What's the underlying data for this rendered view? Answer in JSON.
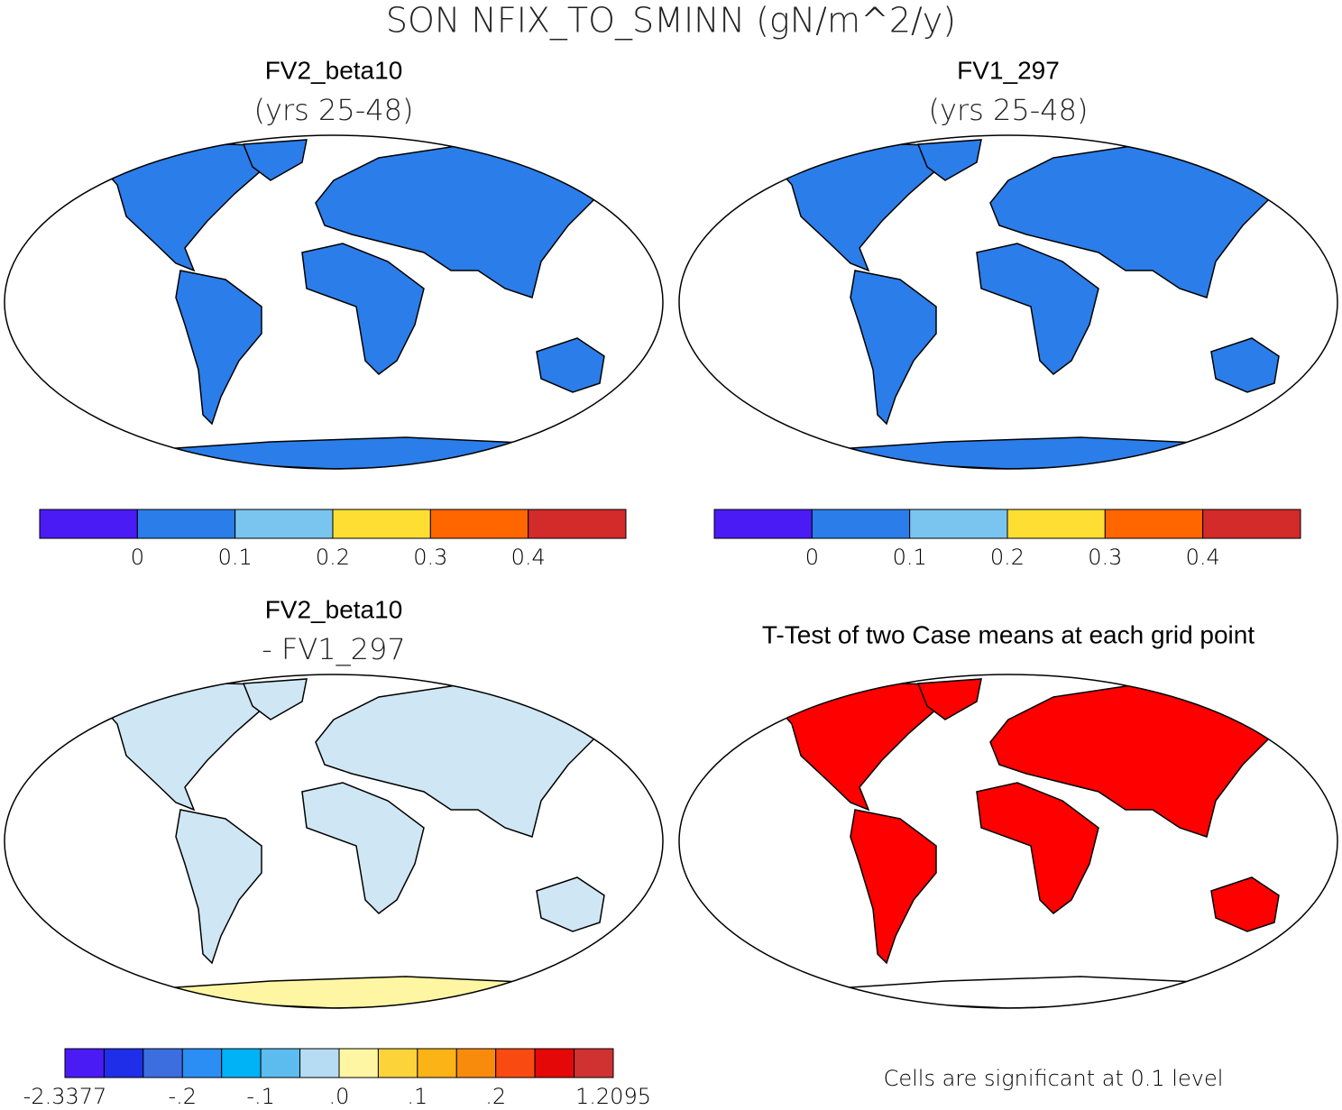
{
  "title": "SON NFIX_TO_SMINN (gN/m^2/y)",
  "panels": [
    {
      "title": "FV2_beta10",
      "subtitle": "(yrs 25-48)",
      "land_color": "#2b7de9",
      "antarctica_color": "#2b7de9",
      "colorbar": {
        "colors": [
          "#4a1bf5",
          "#2b7de9",
          "#79c5ef",
          "#ffde33",
          "#ff6600",
          "#d32a2a"
        ],
        "labels": [
          "0",
          "0.1",
          "0.2",
          "0.3",
          "0.4"
        ]
      }
    },
    {
      "title": "FV1_297",
      "subtitle": "(yrs 25-48)",
      "land_color": "#2b7de9",
      "antarctica_color": "#2b7de9",
      "colorbar": {
        "colors": [
          "#4a1bf5",
          "#2b7de9",
          "#79c5ef",
          "#ffde33",
          "#ff6600",
          "#d32a2a"
        ],
        "labels": [
          "0",
          "0.1",
          "0.2",
          "0.3",
          "0.4"
        ]
      }
    },
    {
      "title": "FV2_beta10",
      "subtitle": "- FV1_297",
      "land_color": "#cfe6f4",
      "antarctica_color": "#fff6a3",
      "colorbar": {
        "colors": [
          "#4a1bf5",
          "#1f2ee8",
          "#3d6ee0",
          "#2a8ef5",
          "#00b2f6",
          "#5cbcf0",
          "#b5dcf2",
          "#fff6a3",
          "#fdd33a",
          "#fcb315",
          "#f88b0c",
          "#f94a12",
          "#e40808",
          "#d03232"
        ],
        "labels": [
          "-2.3377",
          "-.2",
          "-.1",
          ".0",
          ".1",
          ".2",
          "1.2095"
        ]
      }
    },
    {
      "title": "T-Test of two Case means at each grid point",
      "land_color": "#ff0000",
      "antarctica_color": "#ffffff",
      "footnote": "Cells are significant at 0.1 level"
    }
  ]
}
